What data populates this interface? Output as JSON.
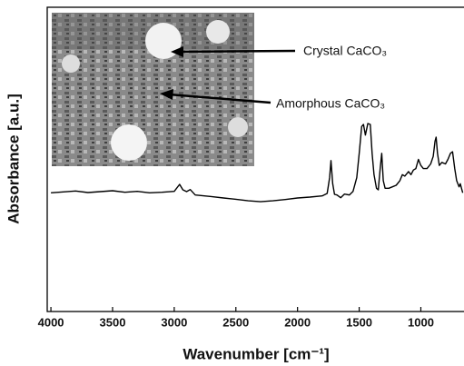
{
  "chart_data": {
    "type": "line",
    "x_label": "Wavenumber [cm⁻¹]",
    "y_label": "Absorbance [a.u.]",
    "annotations": [
      "Crystal CaCO₃",
      "Amorphous CaCO₃"
    ],
    "xlim": [
      4030,
      650
    ],
    "xticks": [
      4000,
      3500,
      3000,
      2500,
      2000,
      1500,
      1000
    ],
    "ylim": [
      0,
      100
    ],
    "grid": false,
    "series": [
      {
        "color": "#000000",
        "x": [
          4000,
          3900,
          3800,
          3700,
          3600,
          3500,
          3400,
          3300,
          3200,
          3100,
          3000,
          2956,
          2930,
          2900,
          2870,
          2830,
          2700,
          2600,
          2500,
          2400,
          2300,
          2200,
          2100,
          2000,
          1900,
          1800,
          1760,
          1740,
          1729,
          1715,
          1700,
          1680,
          1650,
          1620,
          1580,
          1550,
          1520,
          1500,
          1480,
          1465,
          1450,
          1430,
          1410,
          1395,
          1380,
          1360,
          1345,
          1330,
          1317,
          1305,
          1290,
          1260,
          1230,
          1200,
          1170,
          1150,
          1130,
          1100,
          1080,
          1060,
          1040,
          1020,
          1000,
          980,
          950,
          920,
          900,
          885,
          876,
          865,
          850,
          830,
          800,
          780,
          760,
          743,
          725,
          710,
          690,
          680,
          660
        ],
        "values": [
          39,
          39.3,
          39.6,
          39.1,
          39.4,
          39.7,
          39.2,
          39.5,
          39,
          39.2,
          39.5,
          41.8,
          40,
          39.4,
          40.1,
          38.3,
          37.8,
          37.3,
          36.9,
          36.4,
          36.1,
          36.4,
          36.8,
          37.3,
          37.6,
          38,
          38.8,
          44,
          49.6,
          42,
          38.5,
          38.3,
          37.4,
          38.6,
          38.3,
          39.5,
          44,
          52,
          60.8,
          61.5,
          58,
          61.8,
          61.5,
          52,
          45,
          40.5,
          40,
          47,
          52,
          43,
          40.5,
          40.5,
          41,
          41.5,
          43,
          45,
          44.5,
          46,
          45,
          46.5,
          47,
          50,
          48,
          47,
          47,
          48.5,
          51,
          56,
          57.3,
          52,
          48,
          49,
          48.5,
          50,
          52,
          52.5,
          47,
          43,
          41,
          42,
          39
        ]
      }
    ]
  }
}
